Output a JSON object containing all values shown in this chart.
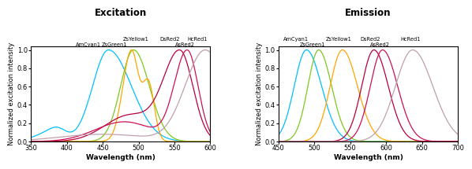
{
  "excitation_title": "Excitation",
  "emission_title": "Emission",
  "ylabel": "Normalized excitation intensity",
  "xlabel": "Wavelength (nm)",
  "excitation_xlim": [
    350,
    600
  ],
  "emission_xlim": [
    450,
    700
  ],
  "ylim": [
    0,
    1.05
  ],
  "proteins": [
    "AmCyan1",
    "ZsGreen1",
    "ZsYellow1",
    "DsRed2",
    "AsRed2",
    "HcRed1"
  ],
  "colors": [
    "#00BFFF",
    "#7DC820",
    "#FFA500",
    "#B8003A",
    "#CC1155",
    "#C0A0A8"
  ],
  "ex_labels": [
    [
      "AmCyan1",
      430,
      1.03
    ],
    [
      "ZsGreen1",
      466,
      1.03
    ],
    [
      "ZsYellow1",
      496,
      1.09
    ],
    [
      "DsRed2",
      543,
      1.09
    ],
    [
      "AsRed2",
      565,
      1.03
    ],
    [
      "HcRed1",
      582,
      1.09
    ]
  ],
  "em_labels": [
    [
      "AmCyan1",
      474,
      1.09
    ],
    [
      "ZsGreen1",
      497,
      1.03
    ],
    [
      "ZsYellow1",
      534,
      1.09
    ],
    [
      "DsRed2",
      578,
      1.09
    ],
    [
      "AsRed2",
      591,
      1.03
    ],
    [
      "HcRed1",
      634,
      1.09
    ]
  ]
}
